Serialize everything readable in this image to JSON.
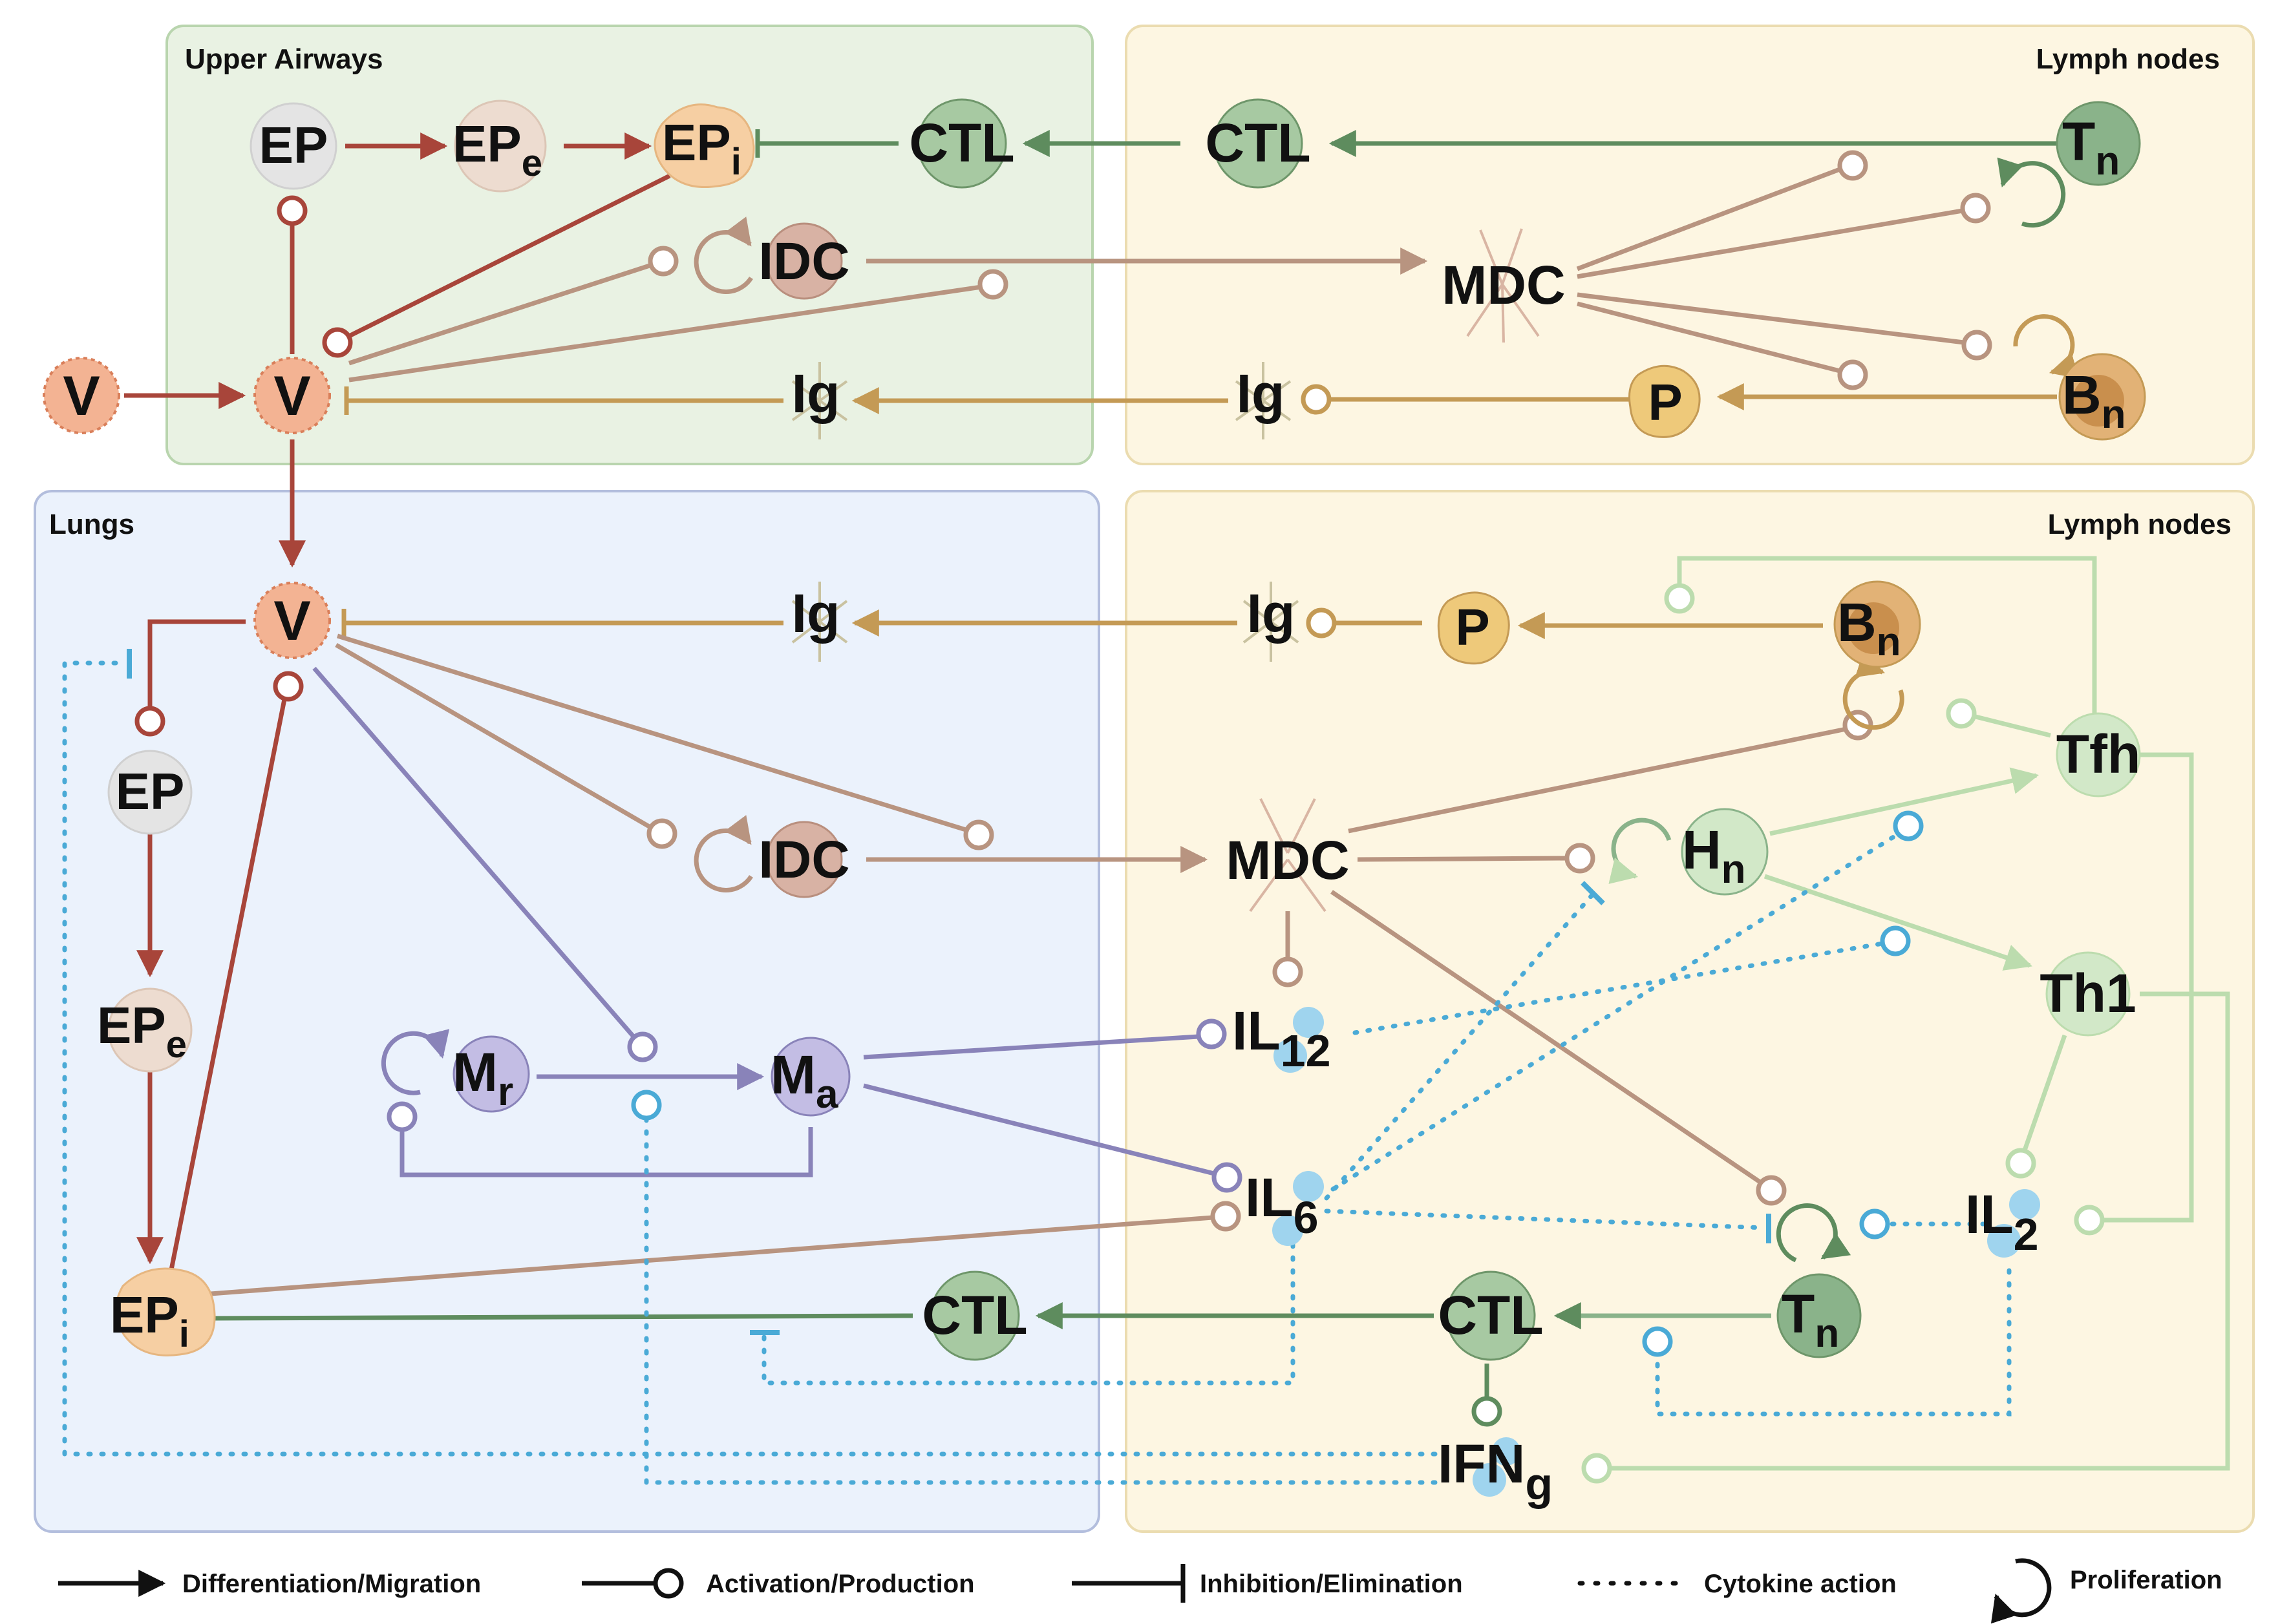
{
  "panels": {
    "upper_airways": "Upper Airways",
    "lymph_nodes_top": "Lymph nodes",
    "lungs": "Lungs",
    "lymph_nodes_bottom": "Lymph nodes"
  },
  "nodes": {
    "EP": "EP",
    "E": "e",
    "I": "i",
    "V": "V",
    "CTL": "CTL",
    "T": "T",
    "B": "B",
    "H": "H",
    "N": "n",
    "IDC": "IDC",
    "MDC": "MDC",
    "Ig": "Ig",
    "P": "P",
    "Tfh": "Tfh",
    "Th1": "Th1",
    "M": "M",
    "R": "r",
    "A": "a",
    "IL": "IL",
    "S12": "12",
    "S6": "6",
    "S2": "2",
    "IFN": "IFN",
    "G": "g"
  },
  "legend": {
    "differentiation": "Differentiation/Migration",
    "activation": "Activation/Production",
    "inhibition": "Inhibition/Elimination",
    "cytokine": "Cytokine action",
    "proliferation": "Proliferation"
  },
  "colors": {
    "virus_red": "#a8453a",
    "dc_brown": "#b89480",
    "ig_gold": "#c49a55",
    "ctl_green": "#5e8c5e",
    "helper_lightgreen": "#bcdcae",
    "macrophage_purple": "#8983b9",
    "cytokine_blue": "#4aaad6",
    "upper_airways_bg": "#e9f2e3",
    "lymph_bg": "#fdf6e2",
    "lungs_bg": "#ebf2fc"
  }
}
